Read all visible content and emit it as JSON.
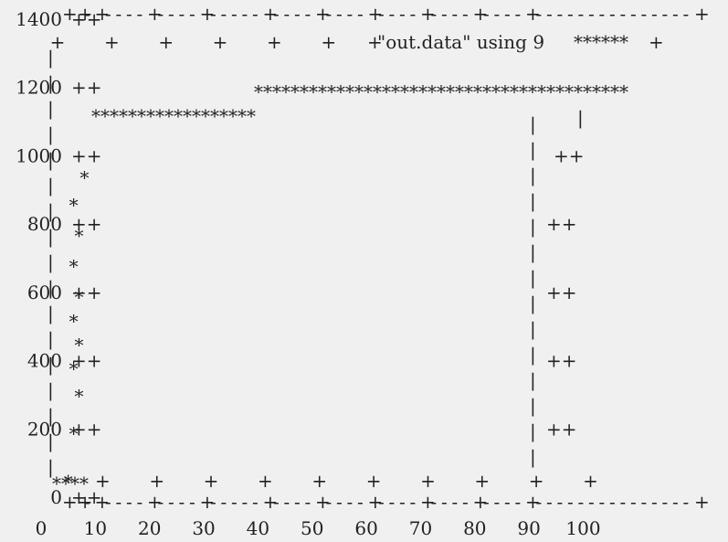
{
  "chart_data": {
    "type": "line",
    "style": "ascii-art",
    "grid": false,
    "legend_position": "top-right",
    "series": [
      {
        "name": "\"out.data\" using 9",
        "marker": "*",
        "x": [
          0,
          5,
          6,
          7,
          8,
          9,
          12,
          15,
          20,
          25,
          30,
          35,
          40,
          50,
          60,
          70,
          80,
          85,
          88,
          90
        ],
        "y": [
          0,
          0,
          100,
          300,
          500,
          700,
          1000,
          1130,
          1130,
          1130,
          1130,
          1200,
          1200,
          1200,
          1200,
          1200,
          1200,
          1200,
          1100,
          0
        ]
      }
    ],
    "xlim": [
      0,
      110
    ],
    "ylim": [
      0,
      1400
    ],
    "x_ticks": [
      "0",
      "10",
      "20",
      "30",
      "40",
      "50",
      "60",
      "70",
      "80",
      "90",
      "100"
    ],
    "y_ticks": [
      "0",
      "200",
      "400",
      "600",
      "800",
      "1000",
      "1200",
      "1400"
    ]
  }
}
